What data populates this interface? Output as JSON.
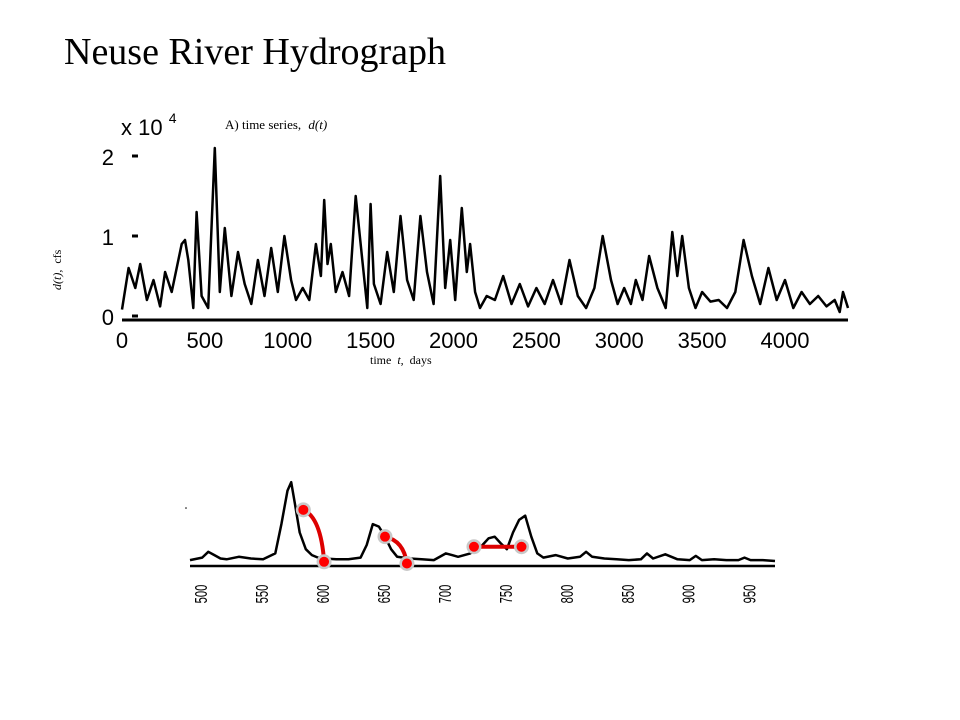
{
  "slide": {
    "title": "Neuse River Hydrograph"
  },
  "chart_data": [
    {
      "type": "line",
      "title": "A) time series,",
      "title_var": "d(t)",
      "ylabel_var": "d(t),",
      "ylabel_unit": "cfs",
      "xlabel_text": "time",
      "xlabel_var": "t,",
      "xlabel_unit": "days",
      "y_multiplier_base": "x 10",
      "y_multiplier_exp": "4",
      "xlim": [
        0,
        4380
      ],
      "ylim": [
        -0.05,
        2.2
      ],
      "xticks": [
        "0",
        "500",
        "1000",
        "1500",
        "2000",
        "2500",
        "3000",
        "3500",
        "4000"
      ],
      "yticks": [
        "0",
        "1",
        "2"
      ],
      "line_color": "#000000",
      "x": [
        0,
        40,
        80,
        110,
        150,
        190,
        230,
        260,
        300,
        330,
        360,
        380,
        400,
        430,
        450,
        480,
        520,
        560,
        590,
        620,
        660,
        700,
        740,
        780,
        820,
        860,
        900,
        940,
        980,
        1020,
        1050,
        1090,
        1130,
        1170,
        1200,
        1220,
        1240,
        1260,
        1290,
        1330,
        1370,
        1410,
        1450,
        1480,
        1500,
        1520,
        1560,
        1600,
        1640,
        1680,
        1720,
        1760,
        1800,
        1840,
        1880,
        1920,
        1950,
        1980,
        2010,
        2050,
        2080,
        2100,
        2130,
        2160,
        2200,
        2250,
        2300,
        2350,
        2400,
        2450,
        2500,
        2550,
        2600,
        2650,
        2700,
        2750,
        2800,
        2850,
        2900,
        2950,
        2990,
        3030,
        3070,
        3100,
        3140,
        3180,
        3230,
        3280,
        3320,
        3350,
        3380,
        3420,
        3460,
        3500,
        3550,
        3600,
        3650,
        3700,
        3750,
        3800,
        3850,
        3900,
        3950,
        4000,
        4050,
        4100,
        4150,
        4200,
        4250,
        4300,
        4330,
        4350,
        4380
      ],
      "y": [
        0.08,
        0.6,
        0.35,
        0.65,
        0.2,
        0.45,
        0.12,
        0.55,
        0.3,
        0.6,
        0.9,
        0.95,
        0.7,
        0.1,
        1.3,
        0.25,
        0.1,
        2.1,
        0.3,
        1.1,
        0.25,
        0.8,
        0.4,
        0.15,
        0.7,
        0.25,
        0.85,
        0.3,
        1.0,
        0.45,
        0.2,
        0.35,
        0.2,
        0.9,
        0.5,
        1.45,
        0.65,
        0.9,
        0.3,
        0.55,
        0.25,
        1.5,
        0.7,
        0.1,
        1.4,
        0.4,
        0.15,
        0.8,
        0.3,
        1.25,
        0.45,
        0.2,
        1.25,
        0.55,
        0.15,
        1.75,
        0.35,
        0.95,
        0.2,
        1.35,
        0.55,
        0.9,
        0.3,
        0.1,
        0.25,
        0.2,
        0.5,
        0.15,
        0.4,
        0.12,
        0.35,
        0.15,
        0.45,
        0.15,
        0.7,
        0.25,
        0.1,
        0.35,
        1.0,
        0.45,
        0.15,
        0.35,
        0.15,
        0.45,
        0.2,
        0.75,
        0.35,
        0.1,
        1.05,
        0.5,
        1.0,
        0.35,
        0.1,
        0.3,
        0.18,
        0.2,
        0.1,
        0.3,
        0.95,
        0.5,
        0.15,
        0.6,
        0.2,
        0.45,
        0.1,
        0.3,
        0.15,
        0.25,
        0.12,
        0.2,
        0.05,
        0.3,
        0.1
      ]
    },
    {
      "type": "line",
      "xlim": [
        490,
        970
      ],
      "ylim": [
        -0.05,
        1.0
      ],
      "xticks": [
        "500",
        "550",
        "600",
        "650",
        "700",
        "750",
        "800",
        "850",
        "900",
        "950"
      ],
      "line_color": "#000000",
      "marker_color": "#ff0000",
      "arc_color": "#dd0000",
      "x": [
        490,
        500,
        505,
        510,
        515,
        520,
        530,
        540,
        550,
        560,
        565,
        570,
        573,
        576,
        580,
        585,
        590,
        595,
        600,
        610,
        620,
        630,
        635,
        640,
        645,
        650,
        655,
        660,
        670,
        680,
        690,
        700,
        705,
        710,
        720,
        730,
        735,
        740,
        745,
        750,
        755,
        760,
        765,
        770,
        775,
        780,
        790,
        800,
        810,
        815,
        820,
        830,
        840,
        850,
        860,
        865,
        870,
        880,
        890,
        900,
        905,
        910,
        920,
        930,
        940,
        945,
        950,
        960,
        970
      ],
      "y": [
        0.02,
        0.05,
        0.12,
        0.08,
        0.04,
        0.03,
        0.06,
        0.04,
        0.03,
        0.1,
        0.45,
        0.85,
        0.95,
        0.7,
        0.35,
        0.15,
        0.08,
        0.05,
        0.04,
        0.03,
        0.03,
        0.05,
        0.2,
        0.45,
        0.42,
        0.3,
        0.15,
        0.06,
        0.04,
        0.03,
        0.02,
        0.1,
        0.08,
        0.06,
        0.1,
        0.2,
        0.28,
        0.3,
        0.22,
        0.15,
        0.35,
        0.5,
        0.55,
        0.3,
        0.1,
        0.05,
        0.08,
        0.04,
        0.06,
        0.12,
        0.06,
        0.04,
        0.03,
        0.02,
        0.03,
        0.1,
        0.04,
        0.09,
        0.03,
        0.02,
        0.07,
        0.02,
        0.03,
        0.02,
        0.02,
        0.05,
        0.02,
        0.02,
        0.01
      ],
      "recession_points": [
        [
          583,
          0.62
        ],
        [
          600,
          0.0
        ],
        [
          650,
          0.3
        ],
        [
          668,
          -0.02
        ],
        [
          723,
          0.18
        ],
        [
          762,
          0.18
        ]
      ],
      "recession_arcs": [
        [
          0,
          1
        ],
        [
          2,
          3
        ],
        [
          4,
          5
        ]
      ]
    }
  ]
}
